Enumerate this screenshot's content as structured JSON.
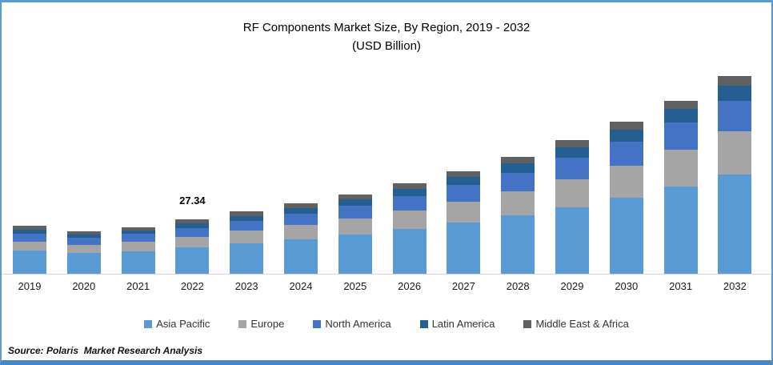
{
  "title": {
    "line1": "RF Components Market Size, By Region, 2019 - 2032",
    "line2": "(USD Billion)"
  },
  "source": "Source: Polaris  Market Research Analysis",
  "chart_data": {
    "type": "bar",
    "stacked": true,
    "title": "RF Components Market Size, By Region, 2019 - 2032 (USD Billion)",
    "xlabel": "",
    "ylabel": "USD Billion",
    "ylim": [
      0,
      100
    ],
    "grid": false,
    "legend_position": "bottom",
    "axis_line_color": "#D6D6D6",
    "frame_border_color": "#5B9BD5",
    "categories": [
      "2019",
      "2020",
      "2021",
      "2022",
      "2023",
      "2024",
      "2025",
      "2026",
      "2027",
      "2028",
      "2029",
      "2030",
      "2031",
      "2032"
    ],
    "series": [
      {
        "name": "Asia Pacific",
        "color": "#5B9BD5",
        "values": [
          11.6,
          10.4,
          11.4,
          13.34,
          15.3,
          17.3,
          19.7,
          22.5,
          25.7,
          29.3,
          33.6,
          38.4,
          43.9,
          50.2
        ]
      },
      {
        "name": "Europe",
        "color": "#A5A5A5",
        "values": [
          4.7,
          4.2,
          4.7,
          5.4,
          6.3,
          7.2,
          8.1,
          9.3,
          10.7,
          12.3,
          14.1,
          16.2,
          18.6,
          21.4
        ]
      },
      {
        "name": "North America",
        "color": "#4472C4",
        "values": [
          4.0,
          3.5,
          3.9,
          4.4,
          5.1,
          5.7,
          6.4,
          7.3,
          8.2,
          9.3,
          10.6,
          12.0,
          13.6,
          15.4
        ]
      },
      {
        "name": "Latin America",
        "color": "#255E91",
        "values": [
          2.0,
          1.8,
          1.9,
          2.2,
          2.5,
          2.9,
          3.2,
          3.6,
          4.1,
          4.7,
          5.3,
          6.0,
          6.8,
          7.7
        ]
      },
      {
        "name": "Middle East & Africa",
        "color": "#5F6062",
        "values": [
          1.9,
          1.6,
          1.7,
          2.0,
          2.1,
          2.3,
          2.6,
          2.8,
          3.1,
          3.4,
          3.6,
          4.0,
          4.4,
          4.8
        ]
      }
    ],
    "totals": [
      24.2,
      21.5,
      23.6,
      27.34,
      31.3,
      35.4,
      40.0,
      45.5,
      51.8,
      59.0,
      67.2,
      76.6,
      87.3,
      99.5
    ],
    "data_labels": [
      {
        "category": "2022",
        "text": "27.34"
      }
    ]
  }
}
